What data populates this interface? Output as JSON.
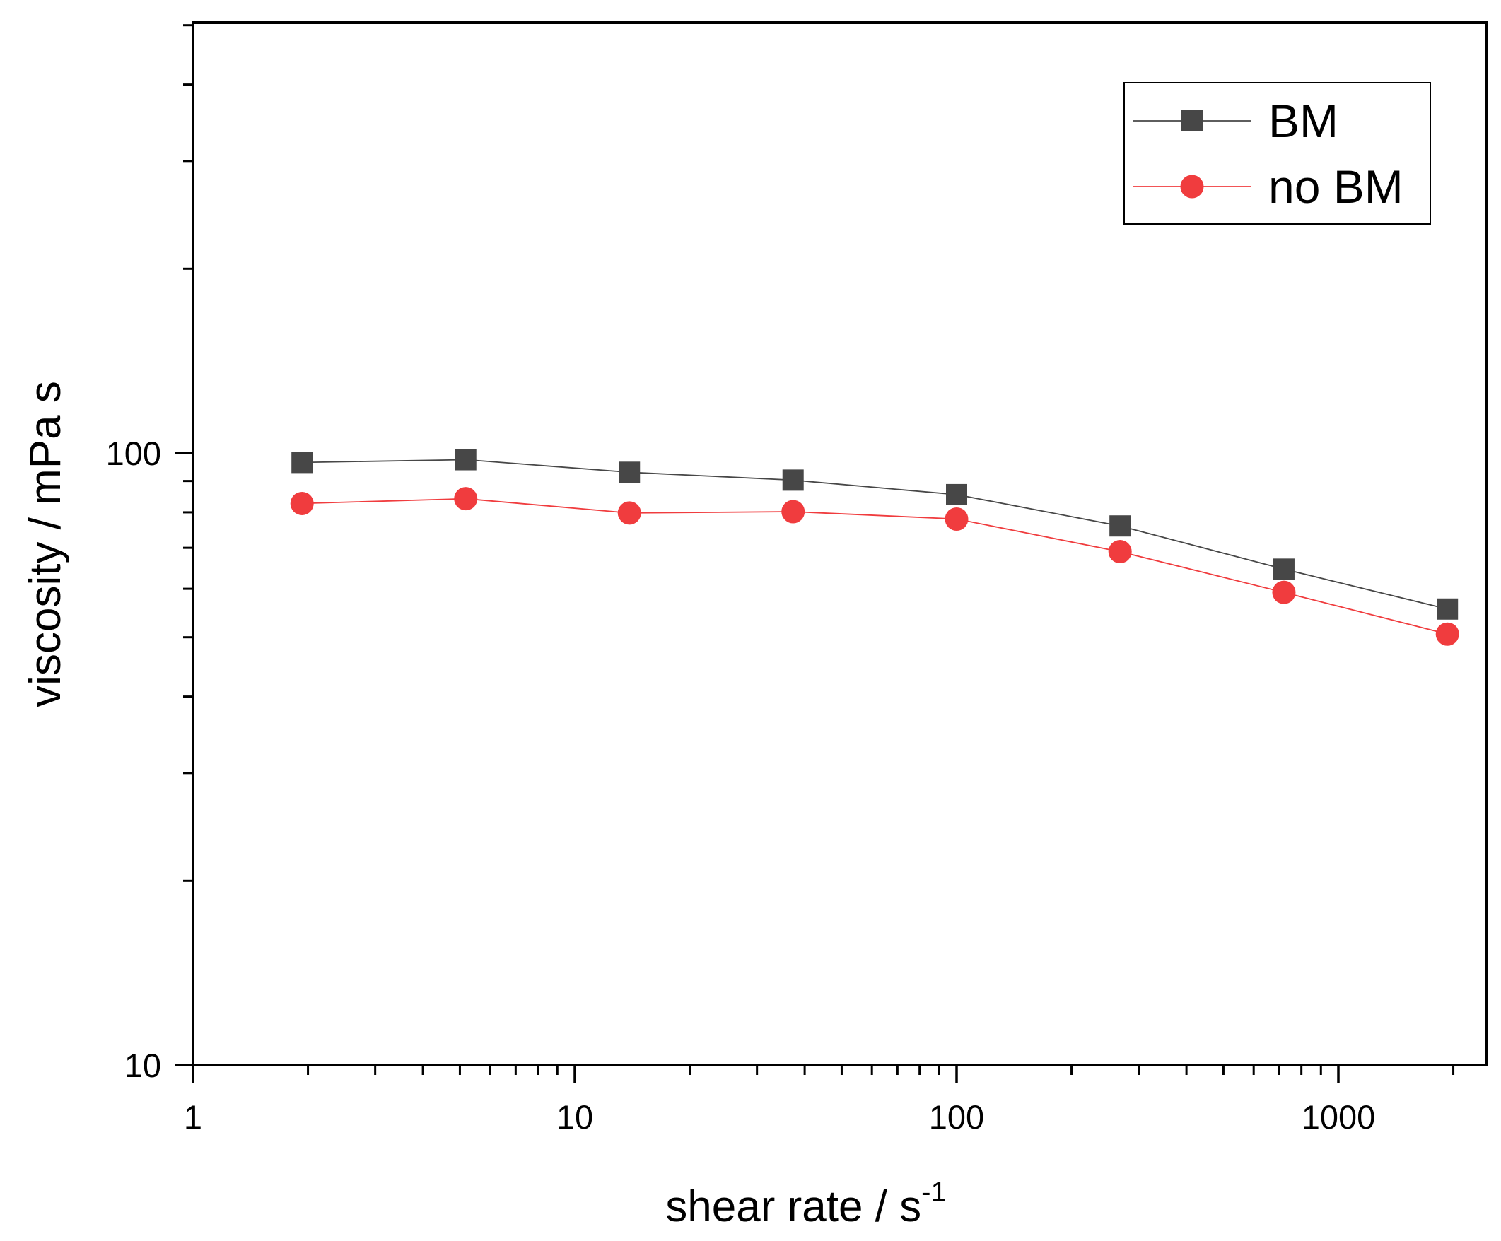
{
  "chart_data": {
    "type": "line",
    "xscale": "log",
    "yscale": "log",
    "xlim": [
      1,
      2600
    ],
    "ylim": [
      10,
      500
    ],
    "xticks": [
      {
        "value": 1,
        "label": "1"
      },
      {
        "value": 10,
        "label": "10"
      },
      {
        "value": 100,
        "label": "100"
      },
      {
        "value": 1000,
        "label": "1000"
      }
    ],
    "yticks": [
      {
        "value": 10,
        "label": "10"
      },
      {
        "value": 100,
        "label": "100"
      }
    ],
    "xlabel": "shear rate / s",
    "xlabel_sup": "-1",
    "ylabel": "viscosity / mPa s",
    "legend_position": "top-right",
    "series": [
      {
        "name": "BM",
        "color": "#474747",
        "marker": "square",
        "x": [
          1.93,
          5.18,
          13.9,
          37.3,
          100,
          268,
          720,
          1930
        ],
        "y": [
          96.5,
          97.5,
          93.0,
          90.3,
          85.5,
          76.0,
          64.6,
          55.6
        ]
      },
      {
        "name": "no BM",
        "color": "#f03c3e",
        "marker": "circle",
        "x": [
          1.93,
          5.18,
          13.9,
          37.3,
          100,
          268,
          720,
          1930
        ],
        "y": [
          82.7,
          84.2,
          79.8,
          80.2,
          78.0,
          69.0,
          59.2,
          50.6
        ]
      }
    ]
  }
}
